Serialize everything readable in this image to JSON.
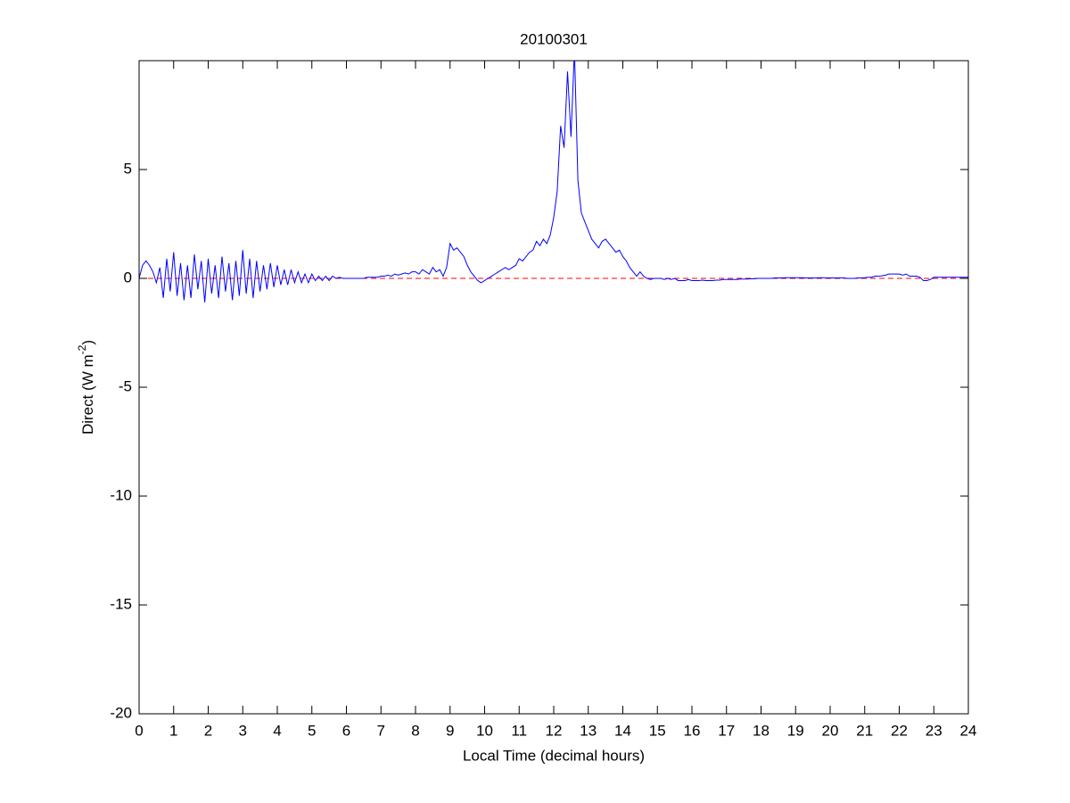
{
  "chart_data": {
    "type": "line",
    "title": "20100301",
    "xlabel": "Local Time (decimal hours)",
    "ylabel": [
      "Direct (W m",
      "-2",
      ")"
    ],
    "x": [
      0,
      0.1,
      0.2,
      0.3,
      0.4,
      0.5,
      0.6,
      0.7,
      0.8,
      0.9,
      1,
      1.1,
      1.2,
      1.3,
      1.4,
      1.5,
      1.6,
      1.7,
      1.8,
      1.9,
      2,
      2.1,
      2.2,
      2.3,
      2.4,
      2.5,
      2.6,
      2.7,
      2.8,
      2.9,
      3,
      3.1,
      3.2,
      3.3,
      3.4,
      3.5,
      3.6,
      3.7,
      3.8,
      3.9,
      4,
      4.1,
      4.2,
      4.3,
      4.4,
      4.5,
      4.6,
      4.7,
      4.8,
      4.9,
      5,
      5.1,
      5.2,
      5.3,
      5.4,
      5.5,
      5.6,
      5.7,
      5.8,
      5.9,
      6,
      6.1,
      6.2,
      6.3,
      6.4,
      6.5,
      6.6,
      6.7,
      6.8,
      6.9,
      7,
      7.1,
      7.2,
      7.3,
      7.4,
      7.5,
      7.6,
      7.7,
      7.8,
      7.9,
      8,
      8.1,
      8.2,
      8.3,
      8.4,
      8.5,
      8.6,
      8.7,
      8.8,
      8.9,
      9,
      9.1,
      9.2,
      9.3,
      9.4,
      9.5,
      9.6,
      9.7,
      9.8,
      9.9,
      10,
      10.1,
      10.2,
      10.3,
      10.4,
      10.5,
      10.6,
      10.7,
      10.8,
      10.9,
      11,
      11.1,
      11.2,
      11.3,
      11.4,
      11.5,
      11.6,
      11.7,
      11.8,
      11.9,
      12,
      12.1,
      12.2,
      12.3,
      12.4,
      12.5,
      12.6,
      12.7,
      12.8,
      12.9,
      13,
      13.1,
      13.2,
      13.3,
      13.4,
      13.5,
      13.6,
      13.7,
      13.8,
      13.9,
      14,
      14.1,
      14.2,
      14.3,
      14.4,
      14.5,
      14.6,
      14.7,
      14.8,
      14.9,
      15,
      15.1,
      15.2,
      15.3,
      15.4,
      15.5,
      15.6,
      15.7,
      15.8,
      15.9,
      16,
      16.1,
      16.2,
      16.3,
      16.4,
      16.5,
      16.6,
      16.7,
      16.8,
      16.9,
      17,
      17.1,
      17.2,
      17.3,
      17.4,
      17.5,
      17.6,
      17.7,
      17.8,
      17.9,
      18,
      18.1,
      18.2,
      18.3,
      18.4,
      18.5,
      18.6,
      18.7,
      18.8,
      18.9,
      19,
      19.1,
      19.2,
      19.3,
      19.4,
      19.5,
      19.6,
      19.7,
      19.8,
      19.9,
      20,
      20.1,
      20.2,
      20.3,
      20.4,
      20.5,
      20.6,
      20.7,
      20.8,
      20.9,
      21,
      21.1,
      21.2,
      21.3,
      21.4,
      21.5,
      21.6,
      21.7,
      21.8,
      21.9,
      22,
      22.1,
      22.2,
      22.3,
      22.4,
      22.5,
      22.6,
      22.7,
      22.8,
      22.9,
      23,
      23.1,
      23.2,
      23.3,
      23.4,
      23.5,
      23.6,
      23.7,
      23.8,
      23.9,
      24
    ],
    "series": [
      {
        "color": "#0000ff",
        "values": [
          0,
          0.6,
          0.8,
          0.6,
          0.3,
          -0.2,
          0.5,
          -0.9,
          0.9,
          -0.6,
          1.2,
          -0.8,
          0.7,
          -1.0,
          0.6,
          -0.9,
          1.1,
          -0.5,
          0.8,
          -1.1,
          0.9,
          -0.7,
          0.6,
          -0.9,
          1.0,
          -0.6,
          0.7,
          -1.0,
          0.8,
          -0.8,
          1.3,
          -0.7,
          0.9,
          -0.9,
          0.8,
          -0.6,
          0.6,
          -0.5,
          0.7,
          -0.4,
          0.6,
          -0.3,
          0.4,
          -0.3,
          0.4,
          -0.2,
          0.3,
          -0.2,
          0.2,
          -0.2,
          0.2,
          -0.1,
          0.1,
          -0.1,
          0.1,
          -0.1,
          0.1,
          0,
          0.05,
          0,
          0,
          0,
          0,
          0,
          0,
          0,
          0.05,
          0.05,
          0.05,
          0.05,
          0.1,
          0.1,
          0.15,
          0.1,
          0.2,
          0.15,
          0.2,
          0.25,
          0.2,
          0.3,
          0.3,
          0.2,
          0.4,
          0.3,
          0.2,
          0.5,
          0.3,
          0.4,
          0.1,
          0.5,
          1.6,
          1.3,
          1.4,
          1.2,
          1.0,
          0.6,
          0.3,
          0.1,
          -0.1,
          -0.2,
          -0.1,
          0,
          0.1,
          0.2,
          0.3,
          0.4,
          0.5,
          0.4,
          0.5,
          0.6,
          0.9,
          0.8,
          1.0,
          1.2,
          1.3,
          1.7,
          1.5,
          1.8,
          1.6,
          2.0,
          2.8,
          4.0,
          7.0,
          6.0,
          9.5,
          6.5,
          10.5,
          4.5,
          3.0,
          2.6,
          2.2,
          1.8,
          1.6,
          1.4,
          1.7,
          1.8,
          1.6,
          1.4,
          1.2,
          1.3,
          1.0,
          0.8,
          0.5,
          0.3,
          0.1,
          0.3,
          0.1,
          0,
          -0.05,
          0,
          0,
          0,
          -0.05,
          0,
          -0.05,
          0,
          -0.1,
          -0.1,
          -0.1,
          -0.05,
          -0.1,
          -0.1,
          -0.1,
          -0.08,
          -0.1,
          -0.1,
          -0.1,
          -0.08,
          -0.08,
          -0.05,
          -0.05,
          -0.05,
          -0.05,
          -0.05,
          -0.03,
          -0.03,
          -0.03,
          -0.02,
          -0.02,
          0,
          0,
          0,
          0,
          0,
          0.02,
          0.02,
          0.02,
          0.03,
          0.03,
          0.03,
          0.03,
          0.03,
          0.03,
          0.02,
          0.02,
          0.02,
          0.02,
          0.03,
          0.03,
          0.02,
          0.02,
          0.02,
          0.02,
          0.02,
          0.02,
          0,
          0,
          0,
          0.02,
          0.02,
          0.03,
          0.05,
          0.05,
          0.1,
          0.1,
          0.12,
          0.15,
          0.2,
          0.2,
          0.2,
          0.2,
          0.15,
          0.2,
          0.1,
          0.1,
          0.1,
          0.05,
          -0.1,
          -0.1,
          -0.05,
          0.05,
          0.05,
          0.05,
          0.05,
          0.05,
          0.05,
          0.05,
          0.05,
          0.05,
          0.05,
          0.05
        ]
      }
    ],
    "hline": {
      "value": 0,
      "color": "#ff0000",
      "dashed": true
    },
    "xlim": [
      0,
      24
    ],
    "xticks": [
      0,
      1,
      2,
      3,
      4,
      5,
      6,
      7,
      8,
      9,
      10,
      11,
      12,
      13,
      14,
      15,
      16,
      17,
      18,
      19,
      20,
      21,
      22,
      23,
      24
    ],
    "ylim": [
      -20,
      10
    ],
    "yticks": [
      -20,
      -15,
      -10,
      -5,
      0,
      5
    ]
  }
}
